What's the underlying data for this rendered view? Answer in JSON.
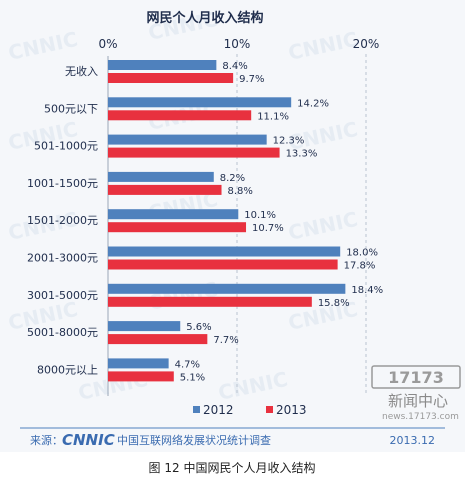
{
  "watermark_text": "CNNIC",
  "chart_data": {
    "type": "bar",
    "orientation": "horizontal",
    "title": "网民个人月收入结构",
    "categories": [
      "无收入",
      "500元以下",
      "501-1000元",
      "1001-1500元",
      "1501-2000元",
      "2001-3000元",
      "3001-5000元",
      "5001-8000元",
      "8000元以上"
    ],
    "series": [
      {
        "name": "2012",
        "color": "#4f81bd",
        "values": [
          8.4,
          14.2,
          12.3,
          8.2,
          10.1,
          18.0,
          18.4,
          5.6,
          4.7
        ],
        "labels": [
          "8.4%",
          "14.2%",
          "12.3%",
          "8.2%",
          "10.1%",
          "18.0%",
          "18.4%",
          "5.6%",
          "4.7%"
        ]
      },
      {
        "name": "2013",
        "color": "#e8313f",
        "values": [
          9.7,
          11.1,
          13.3,
          8.8,
          10.7,
          17.8,
          15.8,
          7.7,
          5.1
        ],
        "labels": [
          "9.7%",
          "11.1%",
          "13.3%",
          "8.8%",
          "10.7%",
          "17.8%",
          "15.8%",
          "7.7%",
          "5.1%"
        ]
      }
    ],
    "xlim": [
      0,
      20
    ],
    "x_ticks": [
      0,
      10,
      20
    ],
    "x_tick_labels": [
      "0%",
      "10%",
      "20%"
    ],
    "x_axis_position": "top",
    "grid": "vertical dashed",
    "legend": "bottom"
  },
  "source": {
    "prefix": "来源：",
    "logo": "CNNIC",
    "org": "中国互联网络发展状况统计调查",
    "date": "2013.12"
  },
  "caption": "图 12 中国网民个人月收入结构",
  "corner_watermark": {
    "logo": "17173",
    "text": "新闻中心",
    "url": "news.17173.com"
  }
}
